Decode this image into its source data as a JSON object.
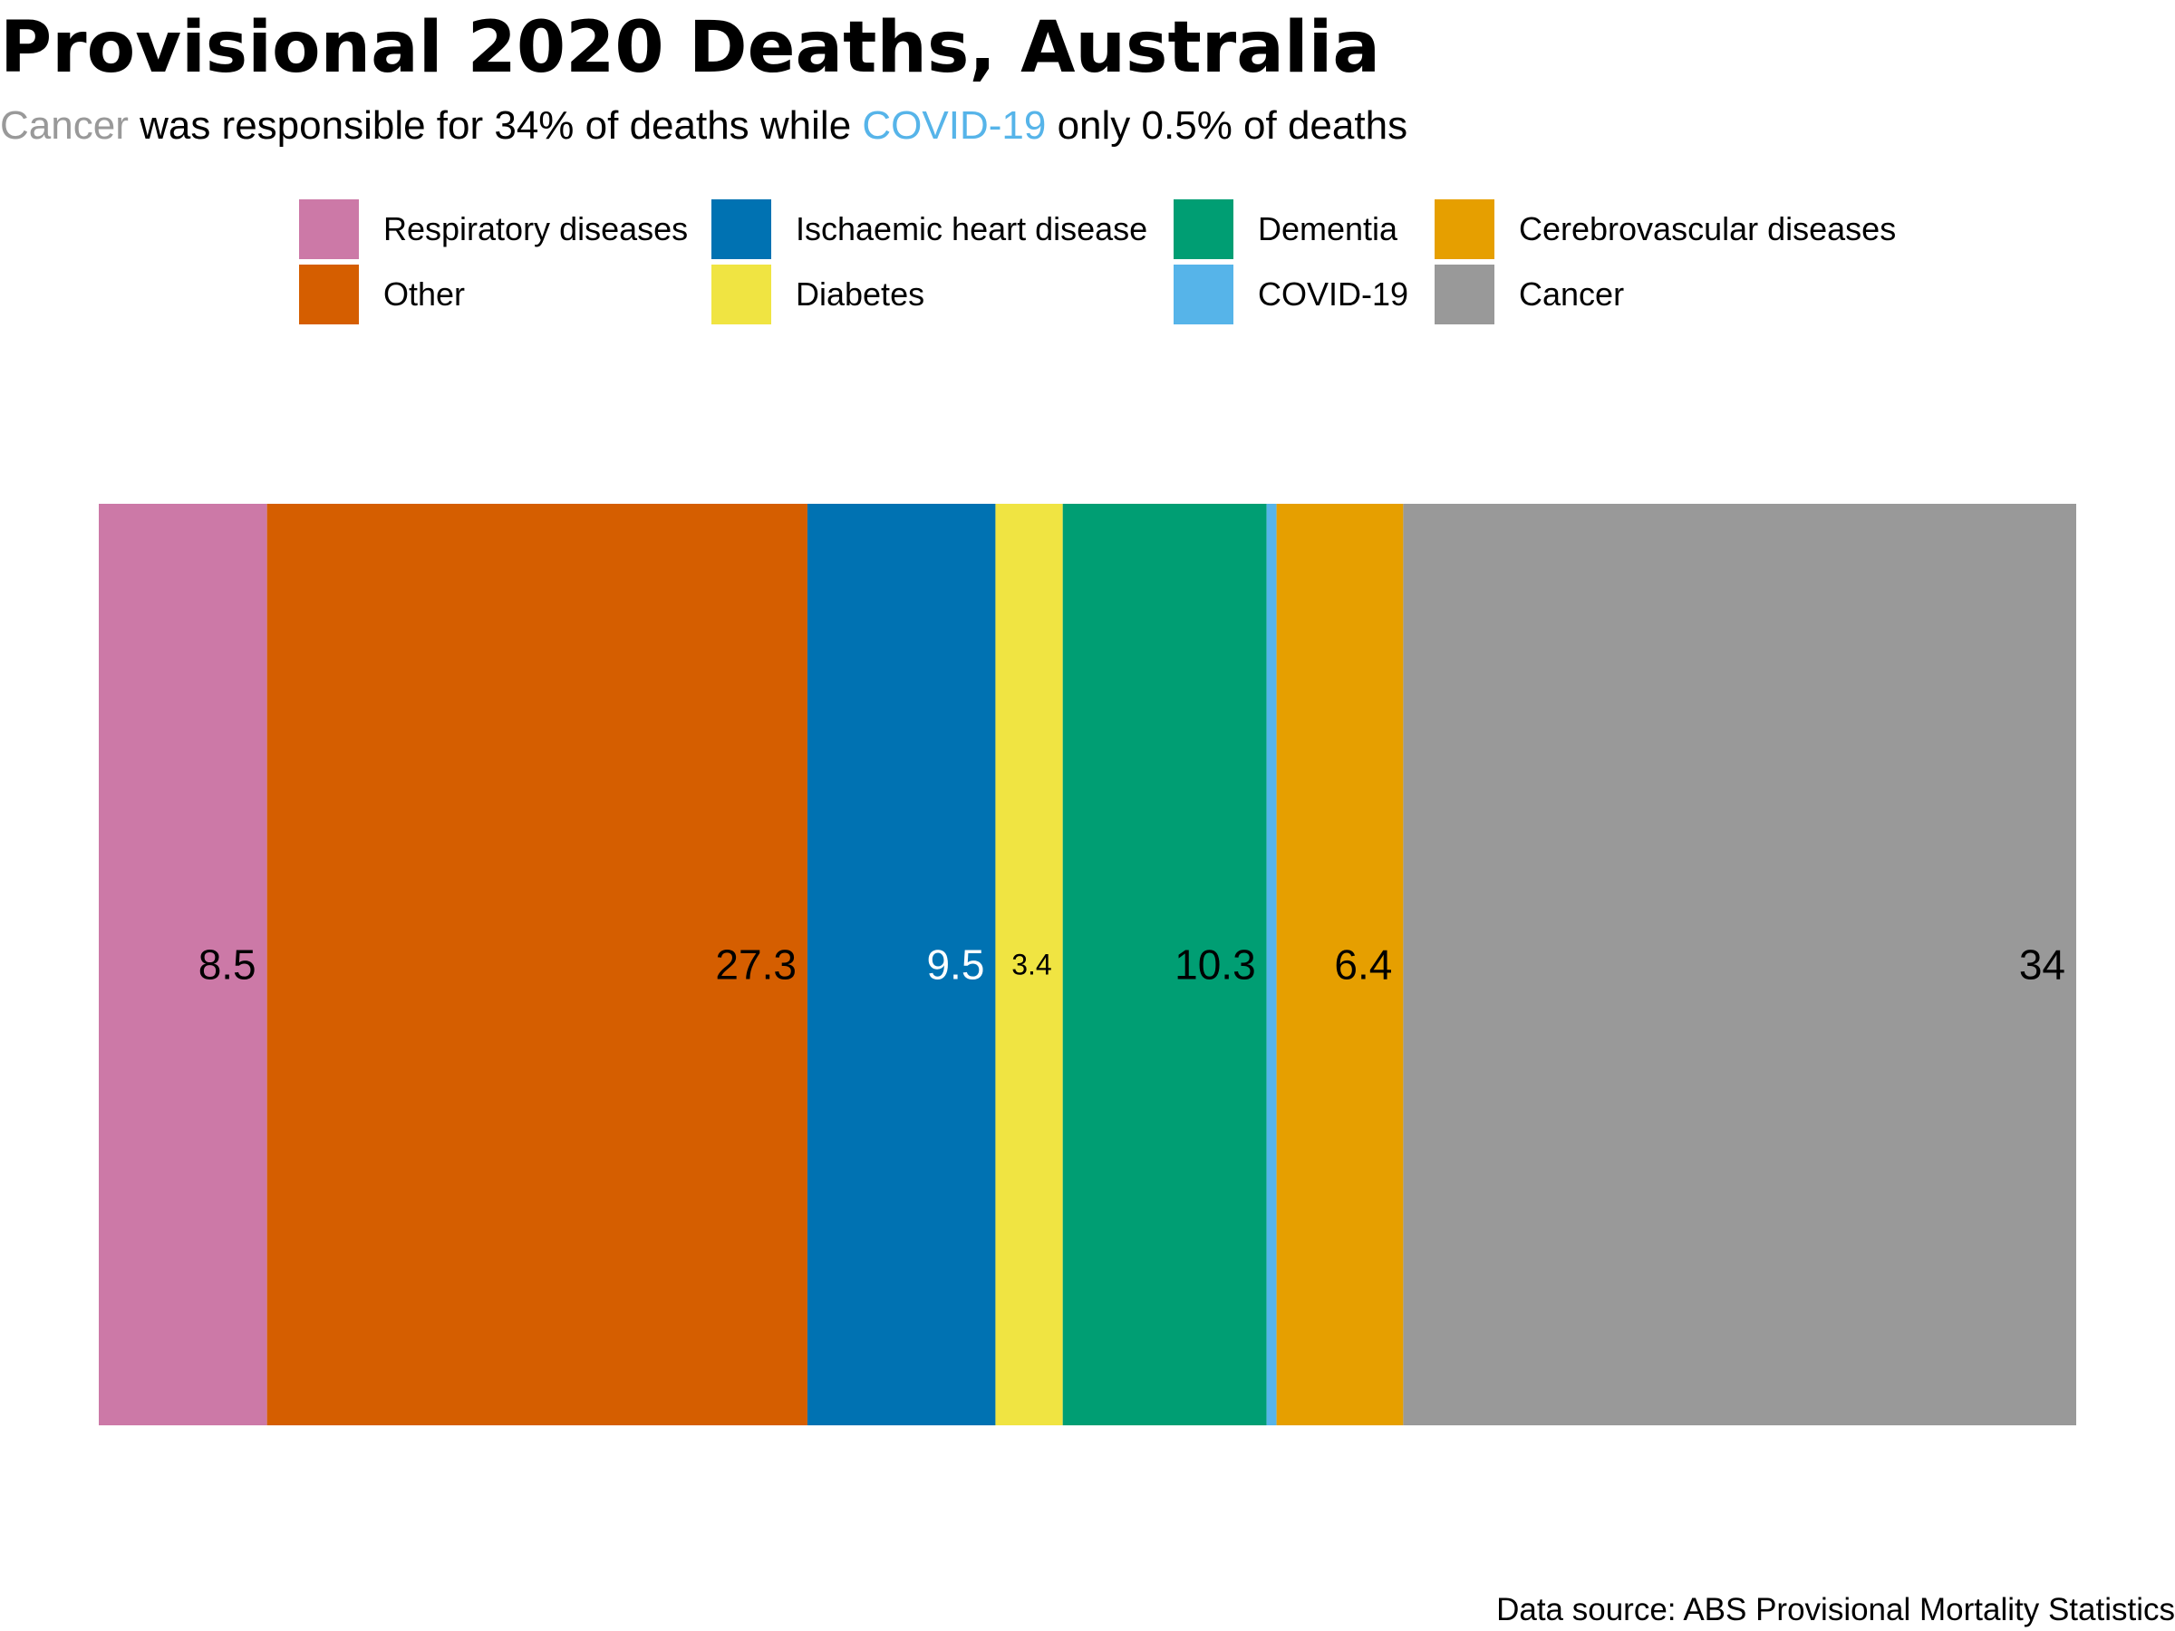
{
  "title": "Provisional 2020 Deaths, Australia",
  "subtitle": {
    "part1": "Cancer",
    "part2": " was responsible for 34% of deaths while ",
    "part3": "COVID-19",
    "part4": " only 0.5% of deaths",
    "part1_color": "#999999",
    "part3_color": "#56B4E9"
  },
  "caption": "Data source: ABS Provisional Mortality Statistics",
  "legend": {
    "items": [
      {
        "label": "Respiratory diseases",
        "color": "#CC79A7"
      },
      {
        "label": "Ischaemic heart disease",
        "color": "#0072B2"
      },
      {
        "label": "Dementia",
        "color": "#009E73"
      },
      {
        "label": "Cerebrovascular diseases",
        "color": "#E69F00"
      },
      {
        "label": "Other",
        "color": "#D55E00"
      },
      {
        "label": "Diabetes",
        "color": "#F0E442"
      },
      {
        "label": "COVID-19",
        "color": "#56B4E9"
      },
      {
        "label": "Cancer",
        "color": "#999999"
      }
    ]
  },
  "chart_data": {
    "type": "bar",
    "stacked": true,
    "unit": "percent of deaths",
    "categories": [
      "Respiratory diseases",
      "Other",
      "Ischaemic heart disease",
      "Diabetes",
      "Dementia",
      "COVID-19",
      "Cerebrovascular diseases",
      "Cancer"
    ],
    "values": [
      8.5,
      27.3,
      9.5,
      3.4,
      10.3,
      0.5,
      6.4,
      34
    ],
    "data_labels": [
      "8.5",
      "27.3",
      "9.5",
      "3.4",
      "10.3",
      "",
      "6.4",
      "34"
    ],
    "colors": [
      "#CC79A7",
      "#D55E00",
      "#0072B2",
      "#F0E442",
      "#009E73",
      "#56B4E9",
      "#E69F00",
      "#999999"
    ],
    "label_colors": [
      "#000000",
      "#000000",
      "#ffffff",
      "#000000",
      "#000000",
      "#000000",
      "#000000",
      "#000000"
    ],
    "xlim": [
      0,
      100
    ],
    "grid": false,
    "legend_position": "top"
  }
}
